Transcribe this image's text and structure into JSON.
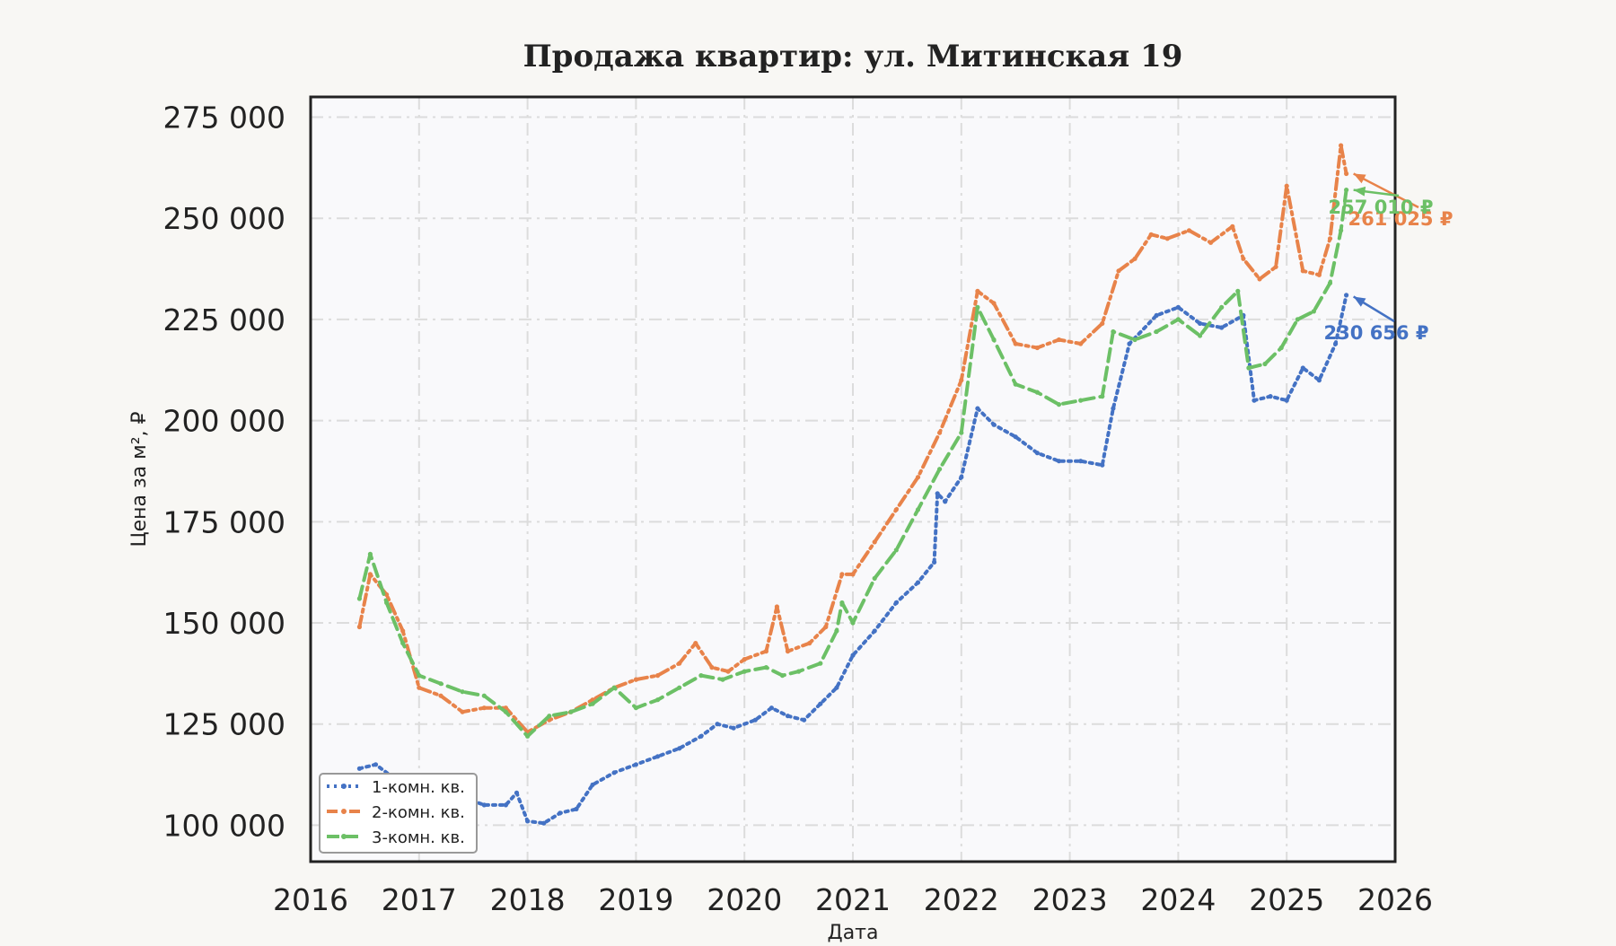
{
  "chart_data": {
    "type": "line",
    "title": "Продажа квартир: ул. Митинская 19",
    "xlabel": "Дата",
    "ylabel": "Цена за м², ₽",
    "xlim": [
      2016,
      2026
    ],
    "ylim": [
      91000,
      280000
    ],
    "x_ticks": [
      2016,
      2017,
      2018,
      2019,
      2020,
      2021,
      2022,
      2023,
      2024,
      2025,
      2026
    ],
    "x_tick_labels": [
      "2016",
      "2017",
      "2018",
      "2019",
      "2020",
      "2021",
      "2022",
      "2023",
      "2024",
      "2025",
      "2026"
    ],
    "y_ticks": [
      100000,
      125000,
      150000,
      175000,
      200000,
      225000,
      250000,
      275000
    ],
    "y_tick_labels": [
      "100 000",
      "125 000",
      "150 000",
      "175 000",
      "200 000",
      "225 000",
      "250 000",
      "275 000"
    ],
    "grid": true,
    "legend_position": "bottom-left",
    "series": [
      {
        "name": "1-комн. кв.",
        "color": "#4472c4",
        "style": "dotted",
        "x": [
          2016.45,
          2016.6,
          2016.8,
          2017.0,
          2017.2,
          2017.4,
          2017.6,
          2017.8,
          2017.9,
          2018.0,
          2018.15,
          2018.3,
          2018.45,
          2018.6,
          2018.8,
          2019.0,
          2019.2,
          2019.4,
          2019.6,
          2019.75,
          2019.9,
          2020.1,
          2020.25,
          2020.4,
          2020.55,
          2020.7,
          2020.85,
          2021.0,
          2021.2,
          2021.4,
          2021.6,
          2021.75,
          2021.78,
          2021.85,
          2022.0,
          2022.15,
          2022.3,
          2022.5,
          2022.7,
          2022.9,
          2023.1,
          2023.3,
          2023.4,
          2023.55,
          2023.8,
          2024.0,
          2024.2,
          2024.4,
          2024.6,
          2024.7,
          2024.85,
          2025.0,
          2025.15,
          2025.3,
          2025.45,
          2025.55
        ],
        "values": [
          114000,
          115000,
          111000,
          111000,
          109000,
          107000,
          105000,
          105000,
          108000,
          101000,
          100500,
          103000,
          104000,
          110000,
          113000,
          115000,
          117000,
          119000,
          122000,
          125000,
          124000,
          126000,
          129000,
          127000,
          126000,
          130000,
          134000,
          142000,
          148000,
          155000,
          160000,
          165000,
          182000,
          180000,
          186000,
          203000,
          199000,
          196000,
          192000,
          190000,
          190000,
          189000,
          203000,
          219000,
          226000,
          228000,
          224000,
          223000,
          226000,
          205000,
          206000,
          205000,
          213000,
          210000,
          219000,
          231000
        ]
      },
      {
        "name": "2-комн. кв.",
        "color": "#e8834a",
        "style": "dashdot",
        "x": [
          2016.45,
          2016.55,
          2016.7,
          2016.85,
          2017.0,
          2017.2,
          2017.4,
          2017.6,
          2017.8,
          2018.0,
          2018.2,
          2018.4,
          2018.6,
          2018.8,
          2019.0,
          2019.2,
          2019.4,
          2019.55,
          2019.7,
          2019.85,
          2020.0,
          2020.2,
          2020.3,
          2020.4,
          2020.6,
          2020.75,
          2020.9,
          2021.0,
          2021.2,
          2021.4,
          2021.6,
          2021.8,
          2022.0,
          2022.15,
          2022.3,
          2022.5,
          2022.7,
          2022.9,
          2023.1,
          2023.3,
          2023.45,
          2023.6,
          2023.75,
          2023.9,
          2024.1,
          2024.3,
          2024.5,
          2024.6,
          2024.75,
          2024.9,
          2025.0,
          2025.15,
          2025.3,
          2025.4,
          2025.5,
          2025.55
        ],
        "values": [
          149000,
          162000,
          157000,
          148000,
          134000,
          132000,
          128000,
          129000,
          129000,
          123000,
          126000,
          128000,
          131000,
          134000,
          136000,
          137000,
          140000,
          145000,
          139000,
          138000,
          141000,
          143000,
          154000,
          143000,
          145000,
          149000,
          162000,
          162000,
          170000,
          178000,
          186000,
          197000,
          210000,
          232000,
          229000,
          219000,
          218000,
          220000,
          219000,
          224000,
          237000,
          240000,
          246000,
          245000,
          247000,
          244000,
          248000,
          240000,
          235000,
          238000,
          258000,
          237000,
          236000,
          245000,
          268000,
          261025
        ]
      },
      {
        "name": "3-комн. кв.",
        "color": "#6cc066",
        "style": "dashed",
        "x": [
          2016.45,
          2016.55,
          2016.7,
          2016.85,
          2017.0,
          2017.2,
          2017.4,
          2017.6,
          2017.8,
          2018.0,
          2018.2,
          2018.4,
          2018.6,
          2018.8,
          2019.0,
          2019.2,
          2019.4,
          2019.6,
          2019.8,
          2020.0,
          2020.2,
          2020.35,
          2020.5,
          2020.7,
          2020.85,
          2020.9,
          2021.0,
          2021.2,
          2021.4,
          2021.6,
          2021.8,
          2022.0,
          2022.15,
          2022.3,
          2022.5,
          2022.7,
          2022.9,
          2023.1,
          2023.3,
          2023.4,
          2023.6,
          2023.8,
          2024.0,
          2024.2,
          2024.4,
          2024.55,
          2024.65,
          2024.8,
          2024.95,
          2025.1,
          2025.25,
          2025.4,
          2025.5,
          2025.55
        ],
        "values": [
          156000,
          167000,
          155000,
          145000,
          137000,
          135000,
          133000,
          132000,
          128000,
          122000,
          127000,
          128000,
          130000,
          134000,
          129000,
          131000,
          134000,
          137000,
          136000,
          138000,
          139000,
          137000,
          138000,
          140000,
          148000,
          155000,
          150000,
          161000,
          168000,
          178000,
          188000,
          197000,
          228000,
          220000,
          209000,
          207000,
          204000,
          205000,
          206000,
          222000,
          220000,
          222000,
          225000,
          221000,
          228000,
          232000,
          213000,
          214000,
          218000,
          225000,
          227000,
          234000,
          247000,
          257010
        ]
      }
    ],
    "annotations": [
      {
        "series": "1-комн. кв.",
        "x": 2025.55,
        "y": 230656,
        "text": "230 656 ₽",
        "color": "#4472c4"
      },
      {
        "series": "2-комн. кв.",
        "x": 2025.55,
        "y": 261025,
        "text": "261 025 ₽",
        "color": "#e8834a"
      },
      {
        "series": "3-комн. кв.",
        "x": 2025.55,
        "y": 257010,
        "text": "257 010 ₽",
        "color": "#6cc066"
      }
    ]
  }
}
